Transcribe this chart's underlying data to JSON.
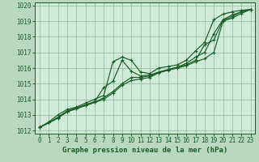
{
  "background_color": "#b8d8c0",
  "plot_bg_color": "#d0ecd8",
  "grid_color": "#90b89a",
  "line_color": "#1a5c28",
  "marker_color": "#1a5c28",
  "xlabel": "Graphe pression niveau de la mer (hPa)",
  "xlabel_fontsize": 6.5,
  "tick_fontsize": 5.5,
  "xlim": [
    -0.5,
    23.5
  ],
  "ylim": [
    1011.8,
    1020.2
  ],
  "yticks": [
    1012,
    1013,
    1014,
    1015,
    1016,
    1017,
    1018,
    1019,
    1020
  ],
  "xticks": [
    0,
    1,
    2,
    3,
    4,
    5,
    6,
    7,
    8,
    9,
    10,
    11,
    12,
    13,
    14,
    15,
    16,
    17,
    18,
    19,
    20,
    21,
    22,
    23
  ],
  "series": [
    [
      1012.2,
      1012.55,
      1013.0,
      1013.35,
      1013.5,
      1013.75,
      1014.0,
      1014.25,
      1016.4,
      1016.7,
      1016.5,
      1015.75,
      1015.65,
      1016.0,
      1016.1,
      1016.2,
      1016.5,
      1017.1,
      1017.65,
      1019.1,
      1019.45,
      1019.6,
      1019.7,
      1019.75
    ],
    [
      1012.2,
      1012.5,
      1012.85,
      1013.25,
      1013.45,
      1013.65,
      1013.85,
      1014.75,
      1015.15,
      1016.5,
      1015.8,
      1015.5,
      1015.55,
      1015.75,
      1015.9,
      1016.05,
      1016.3,
      1016.7,
      1017.0,
      1018.2,
      1019.1,
      1019.4,
      1019.6,
      1019.75
    ],
    [
      1012.2,
      1012.5,
      1012.8,
      1013.2,
      1013.4,
      1013.6,
      1013.8,
      1014.1,
      1014.5,
      1015.0,
      1015.4,
      1015.4,
      1015.5,
      1015.7,
      1015.9,
      1016.05,
      1016.2,
      1016.5,
      1017.5,
      1017.8,
      1019.05,
      1019.3,
      1019.6,
      1019.75
    ],
    [
      1012.2,
      1012.5,
      1012.8,
      1013.2,
      1013.4,
      1013.6,
      1013.8,
      1014.0,
      1014.4,
      1014.9,
      1015.2,
      1015.3,
      1015.4,
      1015.7,
      1015.85,
      1016.0,
      1016.15,
      1016.4,
      1016.6,
      1017.0,
      1019.0,
      1019.2,
      1019.5,
      1019.75
    ]
  ]
}
